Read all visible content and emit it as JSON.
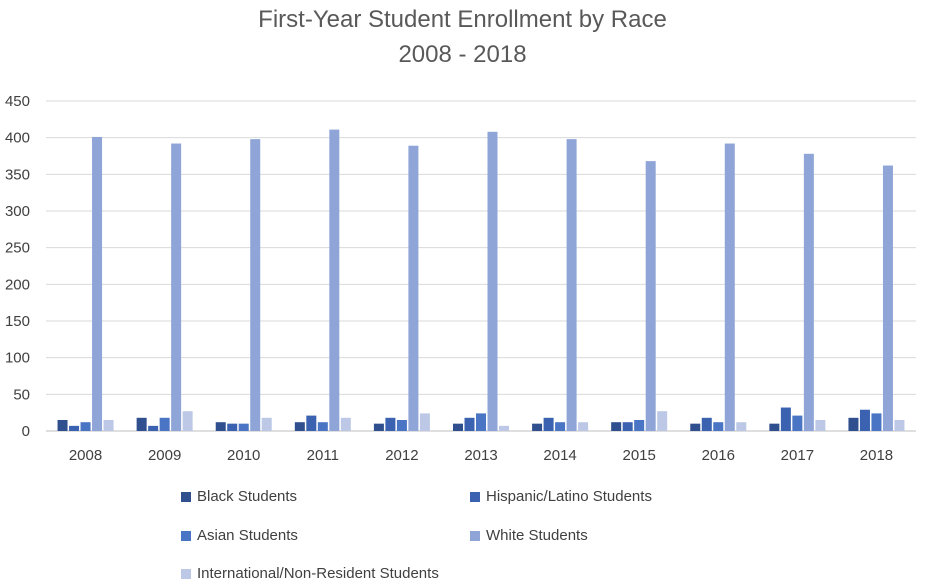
{
  "chart_data": {
    "type": "bar",
    "title": "First-Year Student Enrollment by Race",
    "subtitle": "2008 - 2018",
    "xlabel": "",
    "ylabel": "",
    "ylim": [
      0,
      450
    ],
    "yticks": [
      0,
      50,
      100,
      150,
      200,
      250,
      300,
      350,
      400,
      450
    ],
    "grid": true,
    "legend_position": "bottom",
    "categories": [
      "2008",
      "2009",
      "2010",
      "2011",
      "2012",
      "2013",
      "2014",
      "2015",
      "2016",
      "2017",
      "2018"
    ],
    "series": [
      {
        "name": "Black Students",
        "color": "#2f4f8f",
        "values": [
          15,
          18,
          12,
          12,
          10,
          10,
          10,
          12,
          10,
          10,
          18
        ]
      },
      {
        "name": "Hispanic/Latino Students",
        "color": "#3a62b0",
        "values": [
          7,
          7,
          10,
          21,
          18,
          18,
          18,
          12,
          18,
          32,
          29
        ]
      },
      {
        "name": "Asian Students",
        "color": "#4a74c4",
        "values": [
          12,
          18,
          10,
          12,
          15,
          24,
          12,
          15,
          12,
          21,
          24
        ]
      },
      {
        "name": "White Students",
        "color": "#8fa5d8",
        "values": [
          401,
          392,
          398,
          411,
          389,
          408,
          398,
          368,
          392,
          378,
          362
        ]
      },
      {
        "name": "International/Non-Resident Students",
        "color": "#bcc8e6",
        "values": [
          15,
          27,
          18,
          18,
          24,
          7,
          12,
          27,
          12,
          15,
          15
        ]
      }
    ]
  }
}
